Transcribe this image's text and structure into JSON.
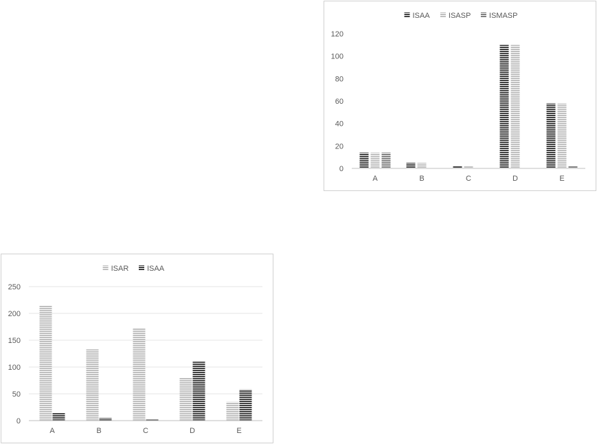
{
  "chart_data": [
    {
      "type": "bar",
      "categories": [
        "A",
        "B",
        "C",
        "D",
        "E"
      ],
      "series": [
        {
          "name": "ISAA",
          "values": [
            14,
            5,
            2,
            110,
            58
          ],
          "color": "#404040"
        },
        {
          "name": "ISASP",
          "values": [
            14,
            5,
            2,
            110,
            58
          ],
          "color": "#bfbfbf"
        },
        {
          "name": "ISMASP",
          "values": [
            14,
            0,
            0,
            0,
            2
          ],
          "color": "#7f7f7f"
        }
      ],
      "ylim": [
        0,
        120
      ],
      "yticks": [
        0,
        20,
        40,
        60,
        80,
        100,
        120
      ],
      "grid": false,
      "legend": "top"
    },
    {
      "type": "bar",
      "categories": [
        "A",
        "B",
        "C",
        "D",
        "E"
      ],
      "series": [
        {
          "name": "ISAR",
          "values": [
            215,
            133,
            172,
            80,
            35
          ],
          "color": "#bfbfbf"
        },
        {
          "name": "ISAA",
          "values": [
            14,
            5,
            2,
            110,
            58
          ],
          "color": "#404040"
        }
      ],
      "ylim": [
        0,
        250
      ],
      "yticks": [
        0,
        50,
        100,
        150,
        200,
        250
      ],
      "grid": true,
      "legend": "top"
    }
  ]
}
